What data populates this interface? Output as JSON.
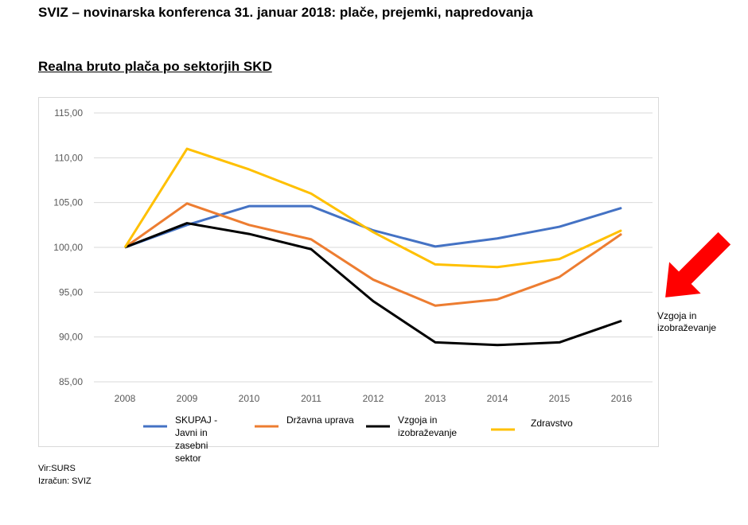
{
  "header": {
    "title": "SVIZ – novinarska konferenca 31. januar 2018: plače, prejemki, napredovanja",
    "subtitle": "Realna bruto plača po sektorjih SKD"
  },
  "source": {
    "line1": "Vir:SURS",
    "line2": "Izračun: SVIZ"
  },
  "annotation": {
    "text_line1": "Vzgoja in",
    "text_line2": "izobraževanje",
    "arrow_color": "#ff0000",
    "icon": "arrow-down-left-icon"
  },
  "chart_data": {
    "type": "line",
    "title": "",
    "x": [
      "2008",
      "2009",
      "2010",
      "2011",
      "2012",
      "2013",
      "2014",
      "2015",
      "2016"
    ],
    "ylim": [
      85,
      115
    ],
    "yticks": [
      "85,00",
      "90,00",
      "95,00",
      "100,00",
      "105,00",
      "110,00",
      "115,00"
    ],
    "grid": true,
    "legend": "bottom",
    "series": [
      {
        "name": "SKUPAJ - Javni in zasebni sektor",
        "legend_lines": [
          "SKUPAJ -",
          "Javni in",
          "zasebni",
          "sektor"
        ],
        "color": "#4472c4",
        "values": [
          100,
          102.5,
          104.6,
          104.6,
          101.9,
          100.1,
          101.0,
          102.3,
          104.4
        ]
      },
      {
        "name": "Državna uprava",
        "legend_lines": [
          "Državna uprava"
        ],
        "color": "#ed7d31",
        "values": [
          100,
          104.9,
          102.5,
          100.9,
          96.4,
          93.5,
          94.2,
          96.7,
          101.5
        ]
      },
      {
        "name": "Vzgoja in izobraževanje",
        "legend_lines": [
          "Vzgoja in",
          "izobraževanje"
        ],
        "color": "#000000",
        "values": [
          100,
          102.7,
          101.5,
          99.8,
          94.0,
          89.4,
          89.1,
          89.4,
          91.8
        ]
      },
      {
        "name": "Zdravstvo",
        "legend_lines": [
          "Zdravstvo"
        ],
        "color": "#ffc000",
        "values": [
          100,
          111.0,
          108.7,
          106.0,
          101.7,
          98.1,
          97.8,
          98.7,
          101.9
        ]
      }
    ]
  }
}
